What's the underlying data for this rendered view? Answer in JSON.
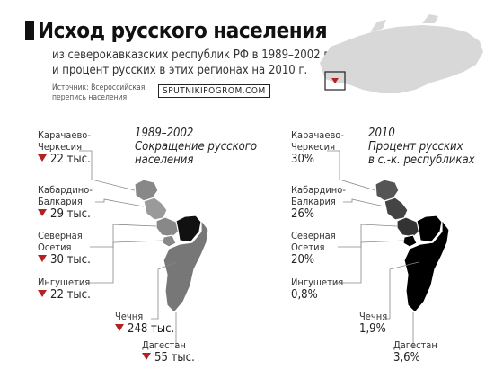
{
  "header": {
    "title": "Исход русского населения",
    "subtitle_line1": "из северокавказских республик РФ в 1989–2002 гг.",
    "subtitle_line2": "и процент русских в этих регионах на 2010 г.",
    "source_line1": "Источник: Всероссийская",
    "source_line2": "перепись населения",
    "badge": "SPUTNIKIPOGROM.COM"
  },
  "left_map": {
    "legend_line1": "1989–2002",
    "legend_line2": "Сокращение русского",
    "legend_line3": "населения",
    "regions": [
      {
        "name_line1": "Карачаево-",
        "name_line2": "Черкесия",
        "value": "22 тыс."
      },
      {
        "name_line1": "Кабардино-",
        "name_line2": "Балкария",
        "value": "29 тыс."
      },
      {
        "name_line1": "Северная",
        "name_line2": "Осетия",
        "value": "30 тыс."
      },
      {
        "name_line1": "Ингушетия",
        "value": "22 тыс."
      },
      {
        "name_line1": "Чечня",
        "value": "248 тыс."
      },
      {
        "name_line1": "Дагестан",
        "value": "55 тыс."
      }
    ]
  },
  "right_map": {
    "legend_line1": "2010",
    "legend_line2": "Процент русских",
    "legend_line3": "в с.-к. республиках",
    "regions": [
      {
        "name_line1": "Карачаево-",
        "name_line2": "Черкесия",
        "value": "30%"
      },
      {
        "name_line1": "Кабардино-",
        "name_line2": "Балкария",
        "value": "26%"
      },
      {
        "name_line1": "Северная",
        "name_line2": "Осетия",
        "value": "20%"
      },
      {
        "name_line1": "Ингушетия",
        "value": "0,8%"
      },
      {
        "name_line1": "Чечня",
        "value": "1,9%"
      },
      {
        "name_line1": "Дагестан",
        "value": "3,6%"
      }
    ]
  },
  "colors": {
    "decrease_marker": "#b22222",
    "left_chechnya": "#777777",
    "left_dagestan": "#8a8a8a",
    "left_north_ossetia": "#111111",
    "right_high": "#555555",
    "right_low": "#000000",
    "russia_map": "#d8d8d8"
  },
  "icons": {
    "decrease": "down-triangle-icon",
    "russia_locator": "russia-map-icon"
  }
}
